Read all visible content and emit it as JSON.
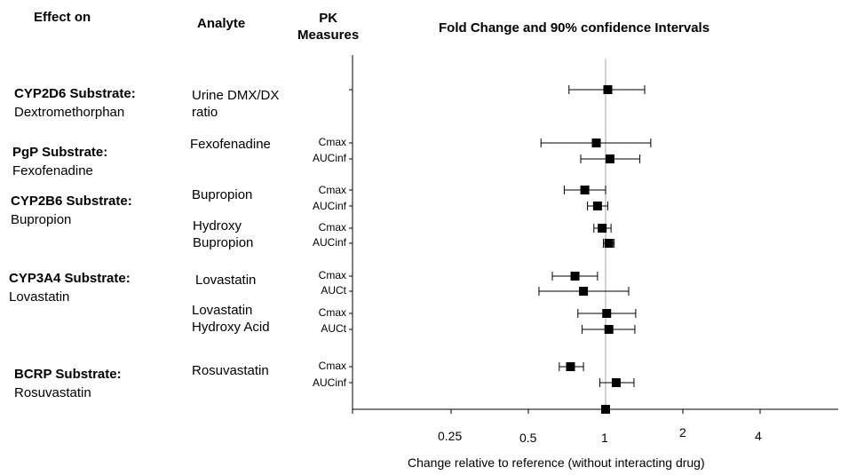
{
  "chart_data": {
    "type": "forest",
    "title": "Fold Change and 90% confidence Intervals",
    "xlabel": "Change relative to reference (without interacting drug)",
    "x_scale": "log2",
    "xlim": [
      0.125,
      8
    ],
    "x_ticks": [
      {
        "value": 0.25,
        "label": "0.25"
      },
      {
        "value": 0.5,
        "label": "0.5"
      },
      {
        "value": 1,
        "label": "1"
      },
      {
        "value": 2,
        "label": "2"
      },
      {
        "value": 4,
        "label": "4"
      }
    ],
    "reference_line": 1,
    "column_headers": {
      "effect_on": "Effect on",
      "analyte": "Analyte",
      "pk_measures": "PK\nMeasures"
    },
    "groups": [
      {
        "effect_bold": "CYP2D6 Substrate:",
        "effect_name": "Dextromethorphan"
      },
      {
        "effect_bold": "PgP Substrate:",
        "effect_name": "Fexofenadine"
      },
      {
        "effect_bold": "CYP2B6 Substrate:",
        "effect_name": "Bupropion"
      },
      {
        "effect_bold": "CYP3A4 Substrate:",
        "effect_name": "Lovastatin"
      },
      {
        "effect_bold": "BCRP Substrate:",
        "effect_name": "Rosuvastatin"
      }
    ],
    "analytes": [
      {
        "label": "Urine DMX/DX\nratio"
      },
      {
        "label": "Fexofenadine"
      },
      {
        "label": "Bupropion"
      },
      {
        "label": "Hydroxy\nBupropion"
      },
      {
        "label": "Lovastatin"
      },
      {
        "label": "Lovastatin\nHydroxy Acid"
      },
      {
        "label": "Rosuvastatin"
      }
    ],
    "rows": [
      {
        "pk": "",
        "estimate": 1.02,
        "lower": 0.72,
        "upper": 1.42
      },
      {
        "pk": "Cmax",
        "estimate": 0.92,
        "lower": 0.56,
        "upper": 1.5
      },
      {
        "pk": "AUCinf",
        "estimate": 1.04,
        "lower": 0.8,
        "upper": 1.36
      },
      {
        "pk": "Cmax",
        "estimate": 0.83,
        "lower": 0.69,
        "upper": 1.0
      },
      {
        "pk": "AUCinf",
        "estimate": 0.93,
        "lower": 0.85,
        "upper": 1.02
      },
      {
        "pk": "Cmax",
        "estimate": 0.97,
        "lower": 0.9,
        "upper": 1.05
      },
      {
        "pk": "AUCinf",
        "estimate": 1.03,
        "lower": 0.98,
        "upper": 1.08
      },
      {
        "pk": "Cmax",
        "estimate": 0.76,
        "lower": 0.62,
        "upper": 0.93
      },
      {
        "pk": "AUCt",
        "estimate": 0.82,
        "lower": 0.55,
        "upper": 1.23
      },
      {
        "pk": "Cmax",
        "estimate": 1.01,
        "lower": 0.78,
        "upper": 1.31
      },
      {
        "pk": "AUCt",
        "estimate": 1.03,
        "lower": 0.81,
        "upper": 1.3
      },
      {
        "pk": "Cmax",
        "estimate": 0.73,
        "lower": 0.66,
        "upper": 0.82
      },
      {
        "pk": "AUCinf",
        "estimate": 1.1,
        "lower": 0.95,
        "upper": 1.29
      },
      {
        "pk": "",
        "estimate": 1.0,
        "lower": 1.0,
        "upper": 1.0
      }
    ]
  }
}
